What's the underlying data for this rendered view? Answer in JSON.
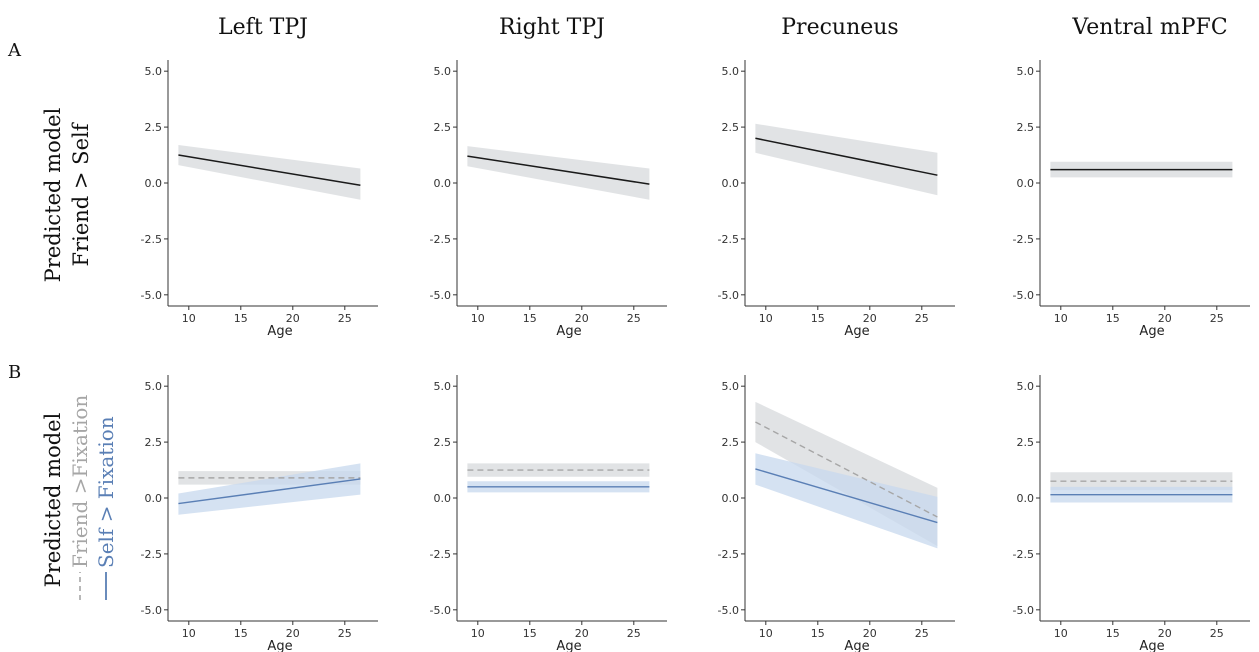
{
  "panel_labels": [
    "A",
    "B"
  ],
  "column_titles": [
    "Left TPJ",
    "Right TPJ",
    "Precuneus",
    "Ventral mPFC"
  ],
  "row_labels": {
    "A": {
      "line1": "Predicted model",
      "line2": "Friend > Self"
    },
    "B": {
      "line1": "Predicted model",
      "legend_friend": "Friend >Fixation",
      "legend_self": "Self > Fixation"
    }
  },
  "colors": {
    "black_line": "#1a1a1a",
    "gray_band": "#d9dcdf",
    "friend_dashed": "#a6a6a6",
    "self_blue": "#5a7fb5",
    "blue_band": "#c7d8ee",
    "axis": "#333333"
  },
  "chart_data": [
    {
      "type": "line",
      "row": "A",
      "region": "Left TPJ",
      "xlabel": "Age",
      "xlim": [
        8,
        28
      ],
      "ylim": [
        -5.5,
        5.5
      ],
      "xticks": [
        10,
        15,
        20,
        25
      ],
      "yticks": [
        "5.0",
        "2.5",
        "0.0",
        "-2.5",
        "-5.0"
      ],
      "series": [
        {
          "style": "solid",
          "color": "black",
          "x": [
            9,
            26.5
          ],
          "y": [
            1.25,
            -0.1
          ],
          "ci_upper": [
            1.7,
            0.65
          ],
          "ci_lower": [
            0.8,
            -0.75
          ]
        }
      ]
    },
    {
      "type": "line",
      "row": "A",
      "region": "Right TPJ",
      "xlabel": "Age",
      "xlim": [
        8,
        28
      ],
      "ylim": [
        -5.5,
        5.5
      ],
      "xticks": [
        10,
        15,
        20,
        25
      ],
      "yticks": [
        "5.0",
        "2.5",
        "0.0",
        "-2.5",
        "-5.0"
      ],
      "series": [
        {
          "style": "solid",
          "color": "black",
          "x": [
            9,
            26.5
          ],
          "y": [
            1.2,
            -0.05
          ],
          "ci_upper": [
            1.65,
            0.65
          ],
          "ci_lower": [
            0.75,
            -0.75
          ]
        }
      ]
    },
    {
      "type": "line",
      "row": "A",
      "region": "Precuneus",
      "xlabel": "Age",
      "xlim": [
        8,
        28
      ],
      "ylim": [
        -5.5,
        5.5
      ],
      "xticks": [
        10,
        15,
        20,
        25
      ],
      "yticks": [
        "5.0",
        "2.5",
        "0.0",
        "-2.5",
        "-5.0"
      ],
      "series": [
        {
          "style": "solid",
          "color": "black",
          "x": [
            9,
            26.5
          ],
          "y": [
            2.0,
            0.35
          ],
          "ci_upper": [
            2.65,
            1.35
          ],
          "ci_lower": [
            1.35,
            -0.55
          ]
        }
      ]
    },
    {
      "type": "line",
      "row": "A",
      "region": "Ventral mPFC",
      "xlabel": "Age",
      "xlim": [
        8,
        28
      ],
      "ylim": [
        -5.5,
        5.5
      ],
      "xticks": [
        10,
        15,
        20,
        25
      ],
      "yticks": [
        "5.0",
        "2.5",
        "0.0",
        "-2.5",
        "-5.0"
      ],
      "series": [
        {
          "style": "solid",
          "color": "black",
          "x": [
            9,
            26.5
          ],
          "y": [
            0.6,
            0.6
          ],
          "ci_upper": [
            0.95,
            0.95
          ],
          "ci_lower": [
            0.25,
            0.25
          ]
        }
      ]
    },
    {
      "type": "line",
      "row": "B",
      "region": "Left TPJ",
      "xlabel": "Age",
      "xlim": [
        8,
        28
      ],
      "ylim": [
        -5.5,
        5.5
      ],
      "xticks": [
        10,
        15,
        20,
        25
      ],
      "yticks": [
        "5.0",
        "2.5",
        "0.0",
        "-2.5",
        "-5.0"
      ],
      "series": [
        {
          "style": "dashed",
          "color": "gray",
          "x": [
            9,
            26.5
          ],
          "y": [
            0.9,
            0.9
          ],
          "ci_upper": [
            1.2,
            1.2
          ],
          "ci_lower": [
            0.6,
            0.6
          ]
        },
        {
          "style": "solid",
          "color": "blue",
          "x": [
            9,
            26.5
          ],
          "y": [
            -0.25,
            0.85
          ],
          "ci_upper": [
            0.2,
            1.55
          ],
          "ci_lower": [
            -0.75,
            0.15
          ]
        }
      ]
    },
    {
      "type": "line",
      "row": "B",
      "region": "Right TPJ",
      "xlabel": "Age",
      "xlim": [
        8,
        28
      ],
      "ylim": [
        -5.5,
        5.5
      ],
      "xticks": [
        10,
        15,
        20,
        25
      ],
      "yticks": [
        "5.0",
        "2.5",
        "0.0",
        "-2.5",
        "-5.0"
      ],
      "series": [
        {
          "style": "dashed",
          "color": "gray",
          "x": [
            9,
            26.5
          ],
          "y": [
            1.25,
            1.25
          ],
          "ci_upper": [
            1.55,
            1.55
          ],
          "ci_lower": [
            0.95,
            0.95
          ]
        },
        {
          "style": "solid",
          "color": "blue",
          "x": [
            9,
            26.5
          ],
          "y": [
            0.5,
            0.5
          ],
          "ci_upper": [
            0.75,
            0.75
          ],
          "ci_lower": [
            0.25,
            0.25
          ]
        }
      ]
    },
    {
      "type": "line",
      "row": "B",
      "region": "Precuneus",
      "xlabel": "Age",
      "xlim": [
        8,
        28
      ],
      "ylim": [
        -5.5,
        5.5
      ],
      "xticks": [
        10,
        15,
        20,
        25
      ],
      "yticks": [
        "5.0",
        "2.5",
        "0.0",
        "-2.5",
        "-5.0"
      ],
      "series": [
        {
          "style": "dashed",
          "color": "gray",
          "x": [
            9,
            26.5
          ],
          "y": [
            3.4,
            -0.85
          ],
          "ci_upper": [
            4.3,
            0.45
          ],
          "ci_lower": [
            2.5,
            -2.15
          ]
        },
        {
          "style": "solid",
          "color": "blue",
          "x": [
            9,
            26.5
          ],
          "y": [
            1.3,
            -1.1
          ],
          "ci_upper": [
            2.0,
            0.05
          ],
          "ci_lower": [
            0.6,
            -2.25
          ]
        }
      ]
    },
    {
      "type": "line",
      "row": "B",
      "region": "Ventral mPFC",
      "xlabel": "Age",
      "xlim": [
        8,
        28
      ],
      "ylim": [
        -5.5,
        5.5
      ],
      "xticks": [
        10,
        15,
        20,
        25
      ],
      "yticks": [
        "5.0",
        "2.5",
        "0.0",
        "-2.5",
        "-5.0"
      ],
      "series": [
        {
          "style": "dashed",
          "color": "gray",
          "x": [
            9,
            26.5
          ],
          "y": [
            0.75,
            0.75
          ],
          "ci_upper": [
            1.15,
            1.15
          ],
          "ci_lower": [
            0.35,
            0.35
          ]
        },
        {
          "style": "solid",
          "color": "blue",
          "x": [
            9,
            26.5
          ],
          "y": [
            0.15,
            0.15
          ],
          "ci_upper": [
            0.5,
            0.5
          ],
          "ci_lower": [
            -0.2,
            -0.2
          ]
        }
      ]
    }
  ]
}
